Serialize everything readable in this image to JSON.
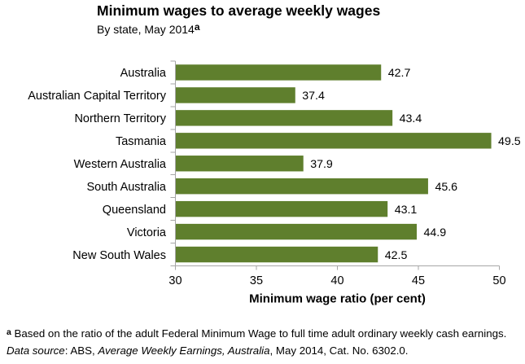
{
  "title": "Minimum wages to average weekly wages",
  "subtitle": {
    "text": "By state, May 2014",
    "superscript": "a"
  },
  "chart_data": {
    "type": "bar",
    "orientation": "horizontal",
    "title": "Minimum wages to average weekly wages",
    "subtitle": "By state, May 2014",
    "categories": [
      "Australia",
      "Australian Capital Territory",
      "Northern Territory",
      "Tasmania",
      "Western Australia",
      "South Australia",
      "Queensland",
      "Victoria",
      "New South Wales"
    ],
    "values": [
      42.7,
      37.4,
      43.4,
      49.5,
      37.9,
      45.6,
      43.1,
      44.9,
      42.5
    ],
    "value_labels": [
      "42.7",
      "37.4",
      "43.4",
      "49.5",
      "37.9",
      "45.6",
      "43.1",
      "44.9",
      "42.5"
    ],
    "xlabel": "Minimum wage ratio (per cent)",
    "ylabel": "",
    "xlim": [
      30,
      50
    ],
    "xticks": [
      "30",
      "35",
      "40",
      "45",
      "50"
    ],
    "grid": false,
    "legend": null,
    "bar_color": "#5f7f2d",
    "axis_color": "#a6a6a6",
    "label_color": "#000000"
  },
  "footnotes": [
    {
      "marker": "a",
      "segments": [
        {
          "text": " Based on the ratio of the adult Federal Minimum Wage to full time adult ordinary weekly cash earnings.",
          "italic": false
        }
      ]
    },
    {
      "marker": "",
      "segments": [
        {
          "text": "Data source",
          "italic": true
        },
        {
          "text": ": ABS, ",
          "italic": false
        },
        {
          "text": "Average Weekly Earnings, Australia",
          "italic": true
        },
        {
          "text": ", May 2014, Cat. No. 6302.0.",
          "italic": false
        }
      ]
    }
  ]
}
